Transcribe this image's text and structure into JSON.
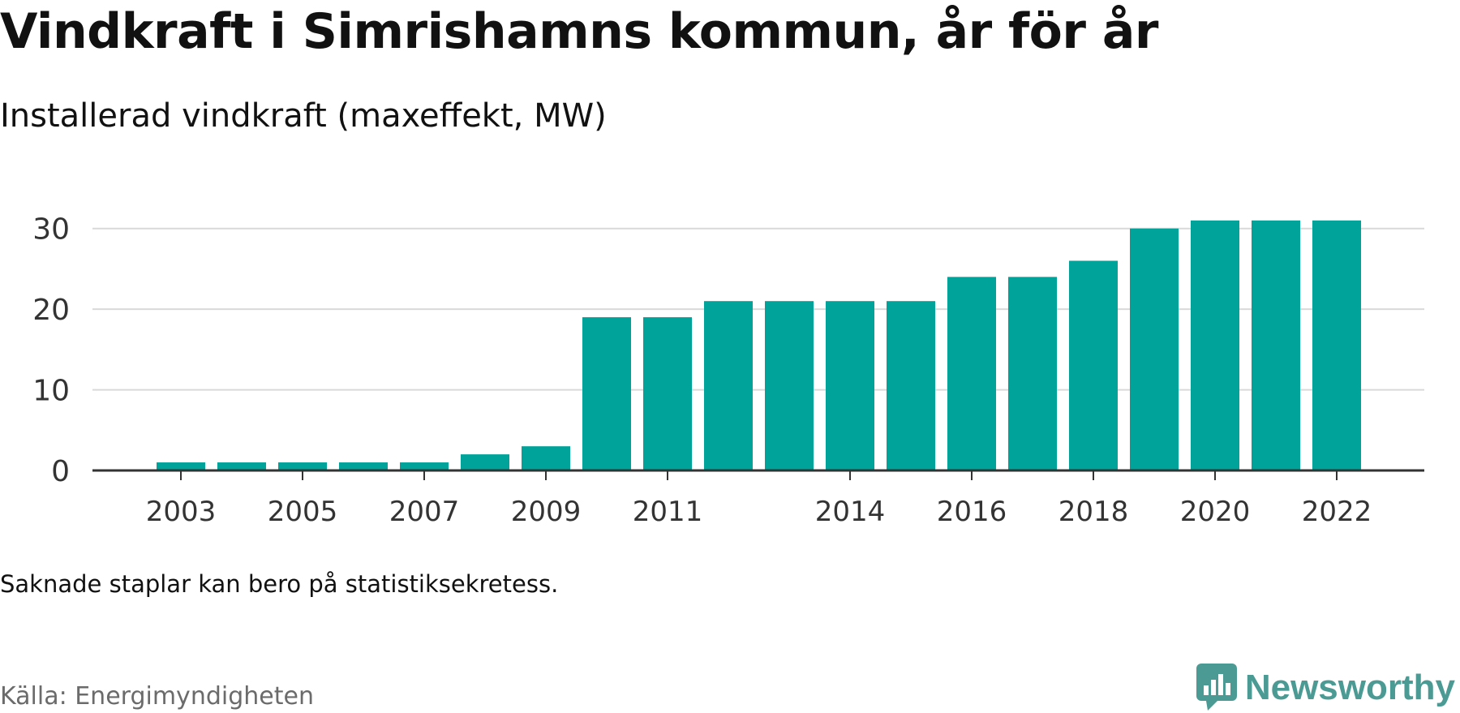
{
  "title": "Vindkraft i Simrishamns kommun, år för år",
  "subtitle": "Installerad vindkraft (maxeffekt, MW)",
  "note": "Saknade staplar kan bero på statistiksekretess.",
  "source": "Källa: Energimyndigheten",
  "brand": {
    "name": "Newsworthy",
    "icon": "newsworthy-logo-icon",
    "color": "#4c9a94"
  },
  "chart_data": {
    "type": "bar",
    "categories": [
      "2003",
      "2004",
      "2005",
      "2006",
      "2007",
      "2008",
      "2009",
      "2010",
      "2011",
      "2012",
      "2013",
      "2014",
      "2015",
      "2016",
      "2017",
      "2018",
      "2019",
      "2020",
      "2021",
      "2022"
    ],
    "values": [
      1,
      1,
      1,
      1,
      1,
      2,
      3,
      19,
      19,
      21,
      21,
      21,
      21,
      24,
      24,
      26,
      30,
      31,
      31,
      31
    ],
    "x_tick_labels": [
      "2003",
      "2005",
      "2007",
      "2009",
      "2011",
      "2014",
      "2016",
      "2018",
      "2020",
      "2022"
    ],
    "y_ticks": [
      0,
      10,
      20,
      30
    ],
    "ylim": [
      0,
      35
    ],
    "bar_color": "#00a39a",
    "grid": true
  }
}
